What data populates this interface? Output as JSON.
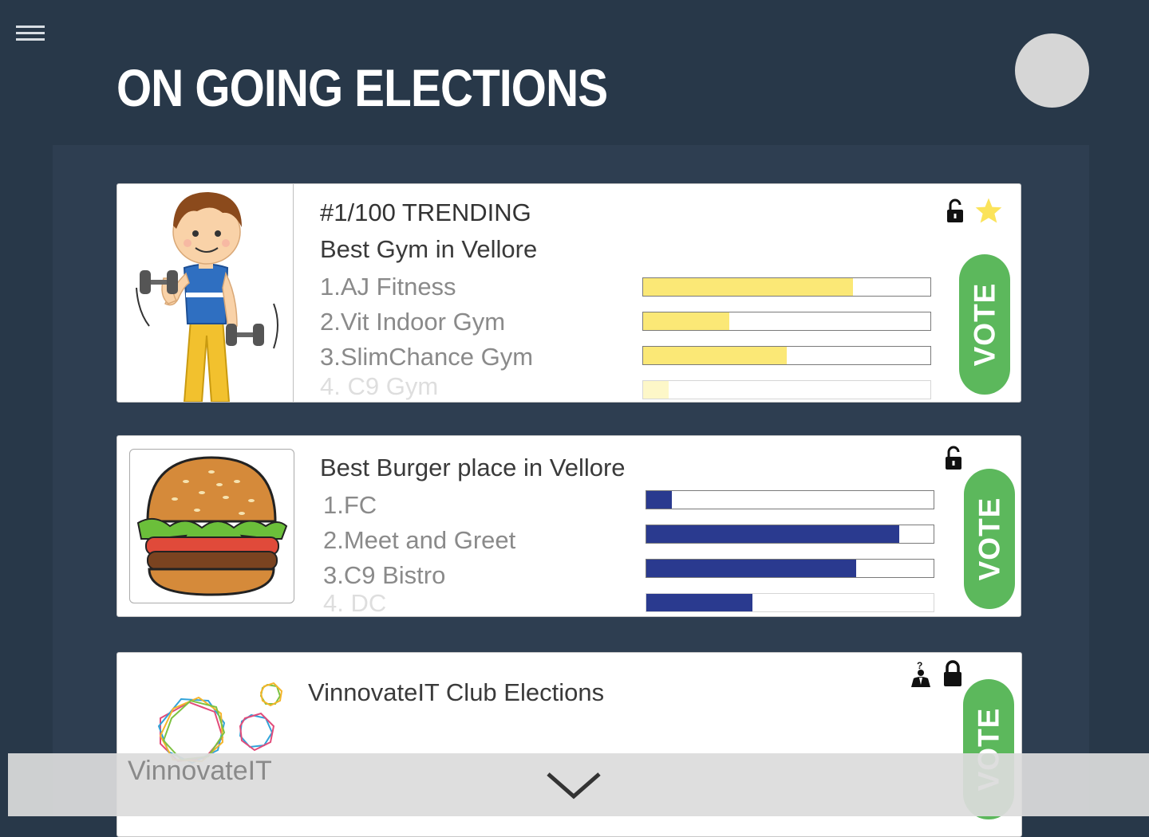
{
  "header": {
    "title": "ON GOING ELECTIONS",
    "menu_icon": "hamburger-icon",
    "avatar_icon": "avatar"
  },
  "elections": [
    {
      "trending": "#1/100 TRENDING",
      "title": "Best Gym in Vellore",
      "image_icon": "gym-man-icon",
      "locked": false,
      "starred": true,
      "bar_color": "#fbe876",
      "options": [
        {
          "label": "1.AJ Fitness",
          "share": 0.73
        },
        {
          "label": "2.Vit Indoor Gym",
          "share": 0.3
        },
        {
          "label": "3.SlimChance Gym",
          "share": 0.5
        },
        {
          "label": "4. C9 Gym",
          "share": 0.09
        }
      ],
      "vote_label": "VOTE"
    },
    {
      "title": "Best Burger place in Vellore",
      "image_icon": "burger-icon",
      "locked": false,
      "bar_color": "#2a3a8f",
      "options": [
        {
          "label": "1.FC",
          "share": 0.09
        },
        {
          "label": "2.Meet and Greet",
          "share": 0.88
        },
        {
          "label": "3.C9 Bistro",
          "share": 0.73
        },
        {
          "label": "4. DC",
          "share": 0.37
        }
      ],
      "vote_label": "VOTE"
    },
    {
      "title": "VinnovateIT Club Elections",
      "image_icon": "vinnovateit-logo",
      "logo_text": "VinnovateIT",
      "locked": true,
      "vote_label": "VOTE"
    }
  ],
  "footer": {
    "chevron_icon": "chevron-down-icon"
  }
}
